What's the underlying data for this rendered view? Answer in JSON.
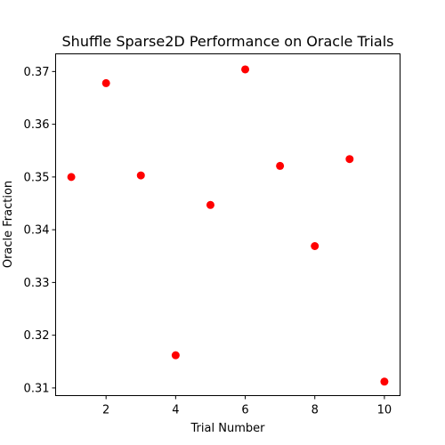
{
  "chart_data": {
    "type": "scatter",
    "title": "Shuffle Sparse2D Performance on Oracle Trials",
    "xlabel": "Trial Number",
    "ylabel": "Oracle Fraction",
    "x": [
      1,
      2,
      3,
      4,
      5,
      6,
      7,
      8,
      9,
      10
    ],
    "y": [
      0.35,
      0.3678,
      0.3503,
      0.3162,
      0.3447,
      0.3704,
      0.3521,
      0.3369,
      0.3534,
      0.3112
    ],
    "xlim": [
      0.55,
      10.45
    ],
    "ylim": [
      0.30855,
      0.37335
    ],
    "xticks": [
      2,
      4,
      6,
      8,
      10
    ],
    "yticks": [
      0.31,
      0.32,
      0.33,
      0.34,
      0.35,
      0.36,
      0.37
    ],
    "xtick_labels": [
      "2",
      "4",
      "6",
      "8",
      "10"
    ],
    "ytick_labels": [
      "0.31",
      "0.32",
      "0.33",
      "0.34",
      "0.35",
      "0.36",
      "0.37"
    ],
    "grid": false,
    "legend": "none",
    "marker_color": "#ff0000"
  }
}
